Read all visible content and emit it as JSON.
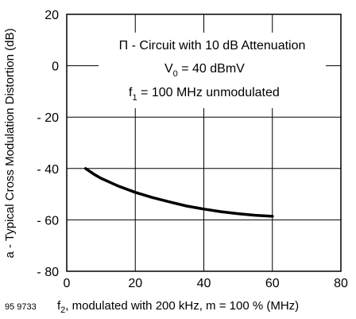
{
  "chart_data": {
    "type": "line",
    "xlim": [
      0,
      80
    ],
    "ylim": [
      -80,
      20
    ],
    "x_ticks": [
      0,
      20,
      40,
      60,
      80
    ],
    "y_ticks": [
      20,
      0,
      -20,
      -40,
      -60,
      -80
    ],
    "x_tick_labels": [
      "0",
      "20",
      "40",
      "60",
      "80"
    ],
    "y_tick_labels": [
      "20",
      "0",
      "- 20",
      "- 40",
      "- 60",
      "- 80"
    ],
    "grid": true,
    "ylabel": "a - Typical Cross Modulation Distortion (dB)",
    "xlabel": {
      "main": "f",
      "sub": "2",
      "rest": ", modulated with 200 kHz, m = 100 % (MHz)"
    },
    "figure_code": "95 9733",
    "annotations": {
      "line1": "Π - Circuit with 10 dB Attenuation",
      "line2": {
        "main": "V",
        "sub": "0",
        "rest": " = 40 dBmV"
      },
      "line3": {
        "main": "f",
        "sub": "1",
        "rest": " = 100 MHz unmodulated"
      }
    },
    "series": [
      {
        "x": [
          5.5,
          8,
          10,
          15,
          20,
          25,
          30,
          35,
          40,
          45,
          50,
          55,
          60
        ],
        "y": [
          -40,
          -42.3,
          -43.8,
          -46.8,
          -49.3,
          -51.3,
          -53.0,
          -54.6,
          -55.8,
          -56.8,
          -57.6,
          -58.2,
          -58.6
        ]
      }
    ]
  }
}
